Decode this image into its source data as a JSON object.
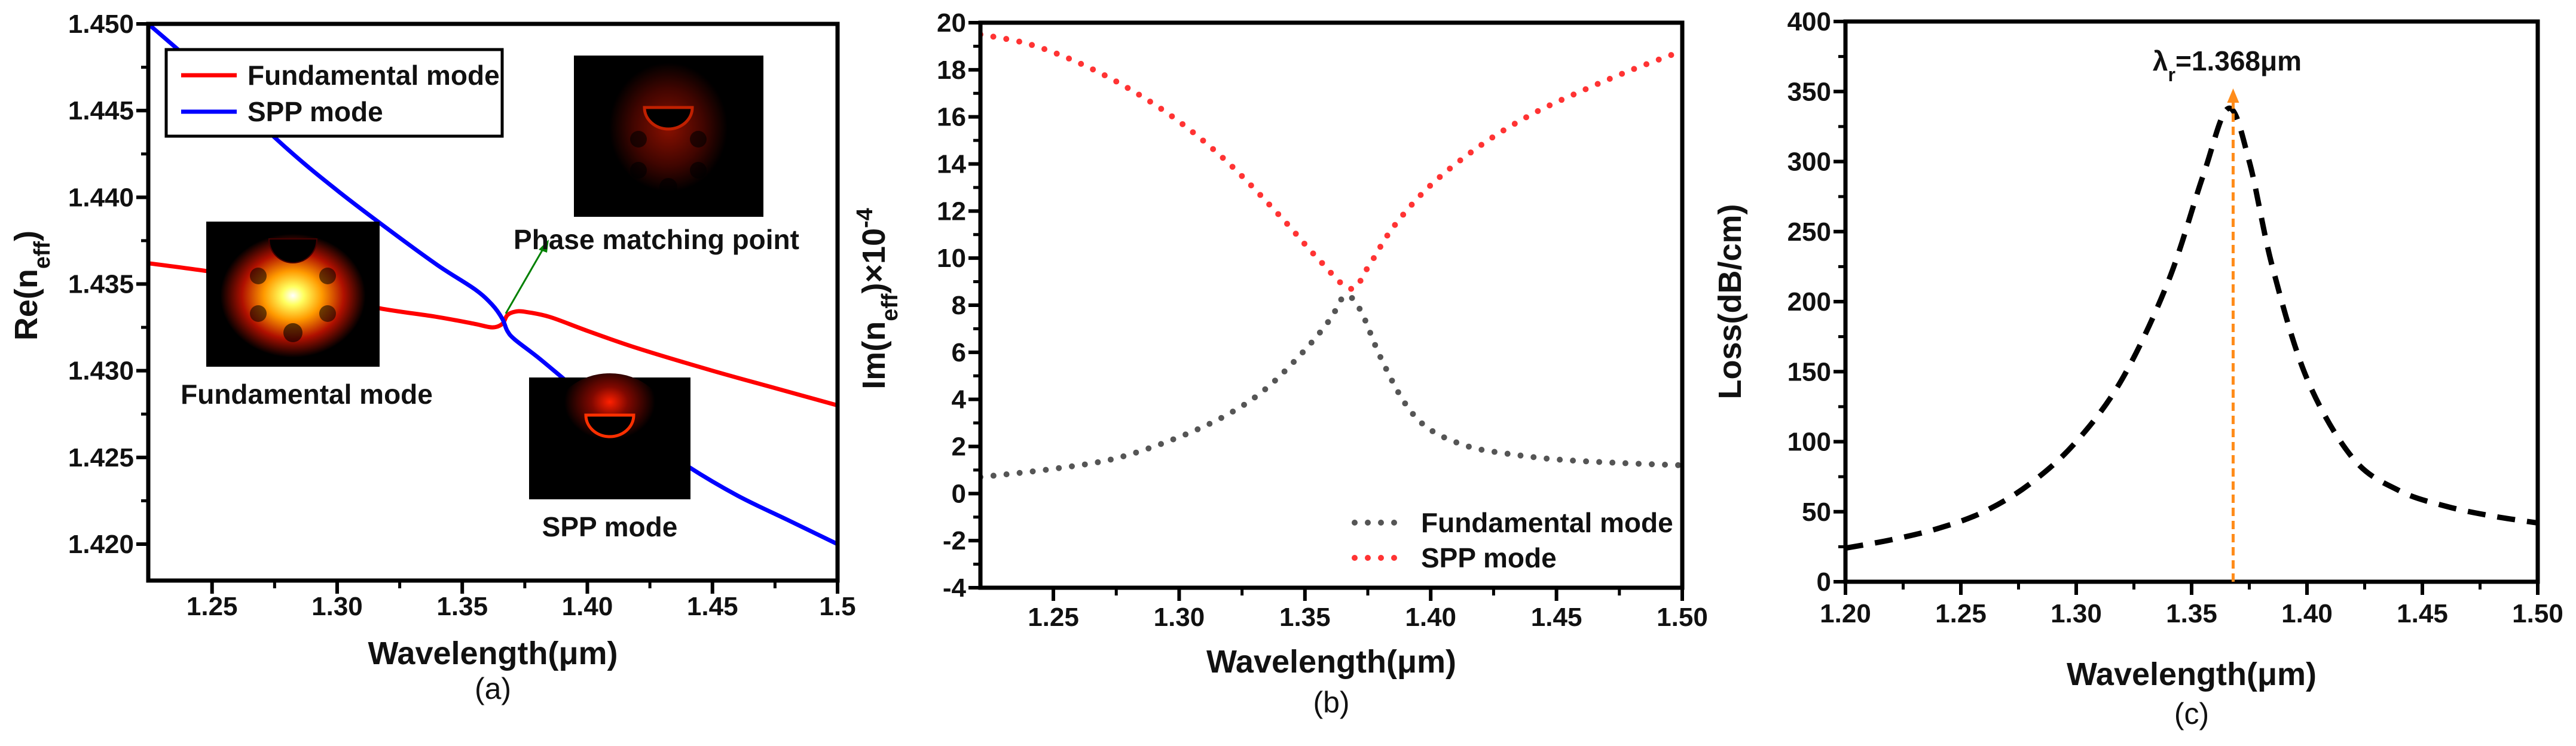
{
  "chart_data": [
    {
      "id": "a",
      "type": "line",
      "caption": "(a)",
      "xlabel": "Wavelength(μm)",
      "ylabel": [
        {
          "t": "Re(n"
        },
        {
          "t": "eff",
          "sub": true
        },
        {
          "t": ")"
        }
      ],
      "xlim": [
        1.2245,
        1.5
      ],
      "ylim": [
        1.4179,
        1.45
      ],
      "xticks": [
        1.25,
        1.3,
        1.35,
        1.4,
        1.45,
        1.5
      ],
      "xtick_labels": [
        "1.25",
        "1.30",
        "1.35",
        "1.40",
        "1.45",
        "1.5"
      ],
      "yticks": [
        1.42,
        1.425,
        1.43,
        1.435,
        1.44,
        1.445,
        1.45
      ],
      "ytick_labels": [
        "1.420",
        "1.425",
        "1.430",
        "1.435",
        "1.440",
        "1.445",
        "1.450"
      ],
      "grid": false,
      "legend_position": "top-left",
      "series": [
        {
          "name": "Fundamental mode",
          "color": "#ff0000",
          "style": "solid",
          "points": [
            [
              1.2245,
              1.4362
            ],
            [
              1.25,
              1.4357
            ],
            [
              1.27,
              1.4352
            ],
            [
              1.3,
              1.4342
            ],
            [
              1.317,
              1.4336
            ],
            [
              1.34,
              1.4331
            ],
            [
              1.355,
              1.4327
            ],
            [
              1.362,
              1.4325
            ],
            [
              1.366,
              1.4327
            ],
            [
              1.368,
              1.4332
            ],
            [
              1.371,
              1.4334
            ],
            [
              1.375,
              1.4334
            ],
            [
              1.385,
              1.4331
            ],
            [
              1.4,
              1.4323
            ],
            [
              1.42,
              1.4313
            ],
            [
              1.45,
              1.43
            ],
            [
              1.475,
              1.429
            ],
            [
              1.5,
              1.428
            ]
          ]
        },
        {
          "name": "SPP mode",
          "color": "#0000ff",
          "style": "solid",
          "points": [
            [
              1.2245,
              1.45
            ],
            [
              1.25,
              1.4468
            ],
            [
              1.28,
              1.4428
            ],
            [
              1.3,
              1.4404
            ],
            [
              1.32,
              1.4382
            ],
            [
              1.34,
              1.4361
            ],
            [
              1.355,
              1.4347
            ],
            [
              1.362,
              1.4338
            ],
            [
              1.366,
              1.433
            ],
            [
              1.368,
              1.4323
            ],
            [
              1.371,
              1.4318
            ],
            [
              1.38,
              1.4308
            ],
            [
              1.39,
              1.4296
            ],
            [
              1.4,
              1.4284
            ],
            [
              1.42,
              1.4265
            ],
            [
              1.44,
              1.4245
            ],
            [
              1.46,
              1.4228
            ],
            [
              1.48,
              1.4214
            ],
            [
              1.5,
              1.42
            ]
          ]
        }
      ],
      "annotations": {
        "fundamental_inset_label": "Fundamental mode",
        "phase_matching_label": "Phase matching point",
        "spp_inset_label": "SPP mode",
        "arrow_color": "#008000"
      }
    },
    {
      "id": "b",
      "type": "line",
      "caption": "(b)",
      "xlabel": "Wavelength(μm)",
      "ylabel": [
        {
          "t": "Im(n"
        },
        {
          "t": "eff",
          "sub": true
        },
        {
          "t": ")×10"
        },
        {
          "t": "-4",
          "sup": true
        }
      ],
      "xlim": [
        1.221,
        1.5
      ],
      "ylim": [
        -4,
        20
      ],
      "xticks": [
        1.25,
        1.3,
        1.35,
        1.4,
        1.45,
        1.5
      ],
      "xtick_labels": [
        "1.25",
        "1.30",
        "1.35",
        "1.40",
        "1.45",
        "1.50"
      ],
      "yticks": [
        -4,
        -2,
        0,
        2,
        4,
        6,
        8,
        10,
        12,
        14,
        16,
        18,
        20
      ],
      "ytick_labels": [
        "-4",
        "-2",
        "0",
        "2",
        "4",
        "6",
        "8",
        "10",
        "12",
        "14",
        "16",
        "18",
        "20"
      ],
      "grid": false,
      "legend_position": "bottom-right",
      "series": [
        {
          "name": "Fundamental mode",
          "color": "#555555",
          "style": "dotted",
          "points": [
            [
              1.221,
              0.7
            ],
            [
              1.25,
              1.05
            ],
            [
              1.275,
              1.5
            ],
            [
              1.3,
              2.4
            ],
            [
              1.32,
              3.4
            ],
            [
              1.335,
              4.5
            ],
            [
              1.35,
              6.1
            ],
            [
              1.36,
              7.4
            ],
            [
              1.366,
              8.4
            ],
            [
              1.372,
              7.8
            ],
            [
              1.38,
              5.8
            ],
            [
              1.39,
              3.8
            ],
            [
              1.4,
              2.7
            ],
            [
              1.415,
              2.0
            ],
            [
              1.43,
              1.7
            ],
            [
              1.45,
              1.45
            ],
            [
              1.475,
              1.3
            ],
            [
              1.5,
              1.2
            ]
          ]
        },
        {
          "name": "SPP mode",
          "color": "#ff3333",
          "style": "dotted",
          "points": [
            [
              1.221,
              19.5
            ],
            [
              1.24,
              19.1
            ],
            [
              1.26,
              18.3
            ],
            [
              1.28,
              17.2
            ],
            [
              1.3,
              15.8
            ],
            [
              1.32,
              14.0
            ],
            [
              1.34,
              11.8
            ],
            [
              1.355,
              10.0
            ],
            [
              1.368,
              8.7
            ],
            [
              1.375,
              9.6
            ],
            [
              1.385,
              11.3
            ],
            [
              1.4,
              13.1
            ],
            [
              1.42,
              14.8
            ],
            [
              1.44,
              16.1
            ],
            [
              1.46,
              17.1
            ],
            [
              1.48,
              18.0
            ],
            [
              1.5,
              18.8
            ]
          ]
        }
      ]
    },
    {
      "id": "c",
      "type": "line",
      "caption": "(c)",
      "xlabel": "Wavelength(μm)",
      "ylabel": [
        {
          "t": "Loss(dB/cm)"
        }
      ],
      "xlim": [
        1.2,
        1.5
      ],
      "ylim": [
        0,
        400
      ],
      "xticks": [
        1.2,
        1.25,
        1.3,
        1.35,
        1.4,
        1.45,
        1.5
      ],
      "xtick_labels": [
        "1.20",
        "1.25",
        "1.30",
        "1.35",
        "1.40",
        "1.45",
        "1.50"
      ],
      "yticks": [
        0,
        50,
        100,
        150,
        200,
        250,
        300,
        350,
        400
      ],
      "ytick_labels": [
        "0",
        "50",
        "100",
        "150",
        "200",
        "250",
        "300",
        "350",
        "400"
      ],
      "grid": false,
      "series": [
        {
          "color": "#000000",
          "style": "dashed",
          "points": [
            [
              1.2,
              24
            ],
            [
              1.22,
              30
            ],
            [
              1.24,
              38
            ],
            [
              1.26,
              50
            ],
            [
              1.28,
              70
            ],
            [
              1.3,
              100
            ],
            [
              1.32,
              145
            ],
            [
              1.34,
              215
            ],
            [
              1.355,
              290
            ],
            [
              1.366,
              338
            ],
            [
              1.375,
              300
            ],
            [
              1.385,
              225
            ],
            [
              1.4,
              145
            ],
            [
              1.42,
              88
            ],
            [
              1.44,
              65
            ],
            [
              1.46,
              54
            ],
            [
              1.48,
              47
            ],
            [
              1.5,
              42
            ]
          ]
        }
      ],
      "annotations": {
        "resonance_label": [
          {
            "t": "λ"
          },
          {
            "t": "r",
            "sub": true
          },
          {
            "t": "=1.368μm"
          }
        ],
        "resonance_wavelength": 1.368,
        "arrow_color": "#ff8c1a"
      }
    }
  ]
}
